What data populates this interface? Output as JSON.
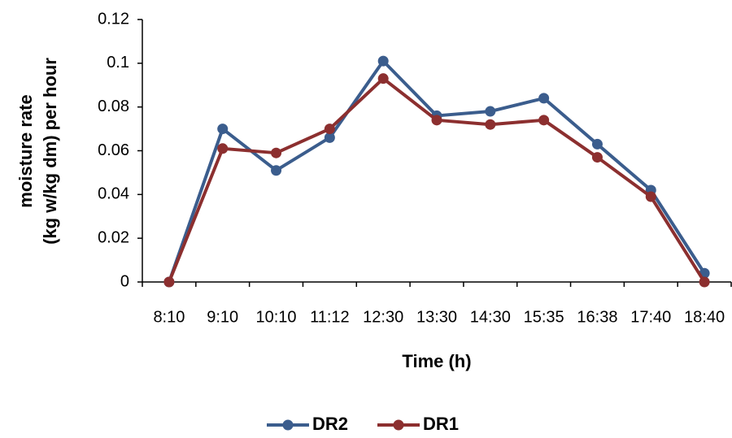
{
  "chart_data": {
    "type": "line",
    "x_label": "Time (h)",
    "y_label": [
      "moisture rate",
      "(kg w/kg dm) per hour"
    ],
    "categories": [
      "8:10",
      "9:10",
      "10:10",
      "11:12",
      "12:30",
      "13:30",
      "14:30",
      "15:35",
      "16:38",
      "17:40",
      "18:40"
    ],
    "series": [
      {
        "name": "DR2",
        "color": "#3b5d8d",
        "values": [
          0,
          0.07,
          0.051,
          0.066,
          0.101,
          0.076,
          0.078,
          0.084,
          0.063,
          0.042,
          0.004
        ]
      },
      {
        "name": "DR1",
        "color": "#8c2f2f",
        "values": [
          0,
          0.061,
          0.059,
          0.07,
          0.093,
          0.074,
          0.072,
          0.074,
          0.057,
          0.039,
          0
        ]
      }
    ],
    "ylim": [
      0,
      0.12
    ],
    "yticks": [
      0,
      0.02,
      0.04,
      0.06,
      0.08,
      0.1,
      0.12
    ],
    "grid": false,
    "legend": "bottom"
  }
}
